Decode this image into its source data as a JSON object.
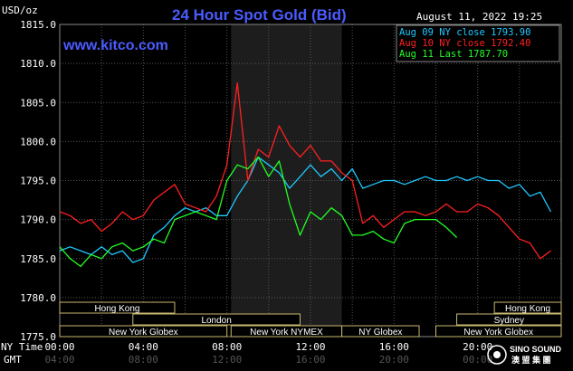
{
  "chart_data": {
    "type": "line",
    "title": "24 Hour Spot Gold (Bid)",
    "site": "www.kitco.com",
    "timestamp": "August 11, 2022 19:25",
    "ylabel": "USD/oz",
    "ylim": [
      1775,
      1815
    ],
    "yticks": [
      "1815.0",
      "1810.0",
      "1805.0",
      "1800.0",
      "1795.0",
      "1790.0",
      "1785.0",
      "1780.0",
      "1775.0"
    ],
    "xlim": [
      0,
      24
    ],
    "xaxis_label_ny": "NY Time",
    "xaxis_label_gmt": "GMT",
    "xticks_ny": [
      "00:00",
      "04:00",
      "08:00",
      "12:00",
      "16:00",
      "20:00"
    ],
    "xticks_gmt": [
      "04:00",
      "08:00",
      "12:00",
      "16:00",
      "20:00",
      "00:00"
    ],
    "grid": true,
    "legend_position": "top-right",
    "series": [
      {
        "name": "Aug 09 NY close 1793.90",
        "color": "#1ec8ff",
        "x": [
          0,
          0.5,
          1,
          1.5,
          2,
          2.5,
          3,
          3.5,
          4,
          4.5,
          5,
          5.5,
          6,
          6.5,
          7,
          7.5,
          8,
          8.5,
          9,
          9.5,
          10,
          10.5,
          11,
          11.5,
          12,
          12.5,
          13,
          13.5,
          14,
          14.5,
          15,
          15.5,
          16,
          16.5,
          17,
          17.5,
          18,
          18.5,
          19,
          19.5,
          20,
          20.5,
          21,
          21.5,
          22,
          22.5,
          23,
          23.5
        ],
        "values": [
          1786.0,
          1786.5,
          1786.0,
          1785.5,
          1786.5,
          1785.5,
          1786.0,
          1784.5,
          1785.0,
          1788.0,
          1789.0,
          1790.5,
          1791.5,
          1791.0,
          1791.5,
          1790.5,
          1790.5,
          1793.0,
          1795.0,
          1798.0,
          1797.0,
          1796.0,
          1794.0,
          1795.5,
          1797.0,
          1795.5,
          1796.5,
          1795.0,
          1796.5,
          1794.0,
          1794.5,
          1795.0,
          1795.0,
          1794.5,
          1795.0,
          1795.5,
          1795.0,
          1795.0,
          1795.5,
          1795.0,
          1795.5,
          1795.0,
          1795.0,
          1794.0,
          1794.5,
          1793.0,
          1793.5,
          1791.0
        ]
      },
      {
        "name": "Aug 10 NY close 1792.40",
        "color": "#ff2020",
        "x": [
          0,
          0.5,
          1,
          1.5,
          2,
          2.5,
          3,
          3.5,
          4,
          4.5,
          5,
          5.5,
          6,
          6.5,
          7,
          7.5,
          8,
          8.5,
          9,
          9.5,
          10,
          10.5,
          11,
          11.5,
          12,
          12.5,
          13,
          13.5,
          14,
          14.5,
          15,
          15.5,
          16,
          16.5,
          17,
          17.5,
          18,
          18.5,
          19,
          19.5,
          20,
          20.5,
          21,
          21.5,
          22,
          22.5,
          23,
          23.5
        ],
        "values": [
          1791.0,
          1790.5,
          1789.5,
          1790.0,
          1788.5,
          1789.5,
          1791.0,
          1790.0,
          1790.5,
          1792.5,
          1793.5,
          1794.5,
          1792.0,
          1791.5,
          1791.0,
          1793.0,
          1797.0,
          1807.5,
          1795.0,
          1799.0,
          1798.0,
          1802.0,
          1799.5,
          1798.0,
          1799.5,
          1797.5,
          1797.5,
          1796.0,
          1795.0,
          1789.5,
          1790.5,
          1789.0,
          1790.0,
          1791.0,
          1791.0,
          1790.5,
          1791.0,
          1792.0,
          1791.0,
          1791.0,
          1792.0,
          1791.5,
          1790.5,
          1789.0,
          1787.5,
          1787.0,
          1785.0,
          1786.0
        ]
      },
      {
        "name": "Aug 11 Last 1787.70",
        "color": "#22ff22",
        "x": [
          0,
          0.5,
          1,
          1.5,
          2,
          2.5,
          3,
          3.5,
          4,
          4.5,
          5,
          5.5,
          6,
          6.5,
          7,
          7.5,
          8,
          8.5,
          9,
          9.5,
          10,
          10.5,
          11,
          11.5,
          12,
          12.5,
          13,
          13.5,
          14,
          14.5,
          15,
          15.5,
          16,
          16.5,
          17,
          17.5,
          18,
          18.5,
          19
        ],
        "values": [
          1786.5,
          1785.0,
          1784.0,
          1785.5,
          1785.0,
          1786.5,
          1787.0,
          1786.0,
          1786.5,
          1787.5,
          1787.0,
          1790.0,
          1790.5,
          1791.0,
          1790.5,
          1790.0,
          1795.0,
          1797.0,
          1796.5,
          1798.0,
          1795.5,
          1797.5,
          1792.0,
          1788.0,
          1791.0,
          1790.0,
          1791.5,
          1790.5,
          1788.0,
          1788.0,
          1788.5,
          1787.5,
          1787.0,
          1789.5,
          1790.0,
          1790.0,
          1790.0,
          1789.0,
          1787.7
        ]
      }
    ],
    "sessions": [
      {
        "label": "Hong Kong",
        "start": 0,
        "end": 5.5,
        "row": 0
      },
      {
        "label": "Hong Kong",
        "start": 20.8,
        "end": 24,
        "row": 0
      },
      {
        "label": "London",
        "start": 3.5,
        "end": 11.5,
        "row": 1
      },
      {
        "label": "Sydney",
        "start": 19,
        "end": 24,
        "row": 1
      },
      {
        "label": "New York Globex",
        "start": 0,
        "end": 8,
        "row": 2
      },
      {
        "label": "New York NYMEX",
        "start": 8.2,
        "end": 13.5,
        "row": 2
      },
      {
        "label": "NY Globex",
        "start": 13.5,
        "end": 17.2,
        "row": 2
      },
      {
        "label": "New York Globex",
        "start": 18,
        "end": 24,
        "row": 2
      }
    ],
    "highlight_band": [
      8.2,
      13.5
    ],
    "watermark": "SINO SOUND"
  }
}
